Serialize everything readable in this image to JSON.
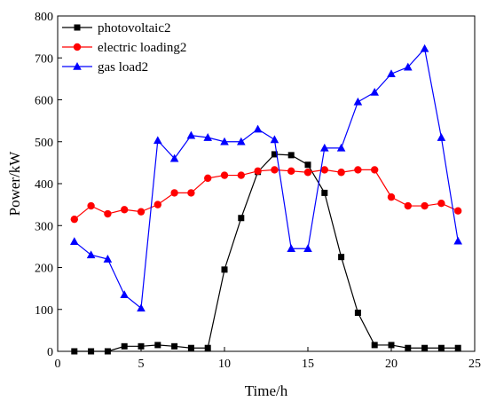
{
  "chart_data": {
    "type": "line",
    "xlabel": "Time/h",
    "ylabel": "Power/kW",
    "xlim": [
      0,
      25
    ],
    "ylim": [
      0,
      800
    ],
    "xticks": [
      0,
      5,
      10,
      15,
      20,
      25
    ],
    "yticks": [
      0,
      100,
      200,
      300,
      400,
      500,
      600,
      700,
      800
    ],
    "grid": false,
    "legend_position": "top-left",
    "x": [
      1,
      2,
      3,
      4,
      5,
      6,
      7,
      8,
      9,
      10,
      11,
      12,
      13,
      14,
      15,
      16,
      17,
      18,
      19,
      20,
      21,
      22,
      23,
      24
    ],
    "series": [
      {
        "name": "photovoltaic2",
        "color": "#000000",
        "marker": "square",
        "values": [
          0,
          0,
          0,
          12,
          12,
          15,
          12,
          8,
          8,
          195,
          318,
          428,
          470,
          468,
          445,
          378,
          225,
          92,
          15,
          15,
          8,
          8,
          8,
          8
        ]
      },
      {
        "name": "electric loading2",
        "color": "#ff0000",
        "marker": "circle",
        "values": [
          315,
          347,
          328,
          338,
          333,
          350,
          378,
          378,
          413,
          420,
          420,
          430,
          433,
          430,
          427,
          433,
          427,
          433,
          433,
          368,
          347,
          347,
          353,
          335
        ]
      },
      {
        "name": "gas load2",
        "color": "#0000ff",
        "marker": "triangle",
        "values": [
          262,
          230,
          220,
          135,
          103,
          503,
          460,
          515,
          510,
          500,
          500,
          530,
          505,
          245,
          245,
          485,
          485,
          595,
          618,
          662,
          678,
          722,
          510,
          263
        ]
      }
    ]
  }
}
